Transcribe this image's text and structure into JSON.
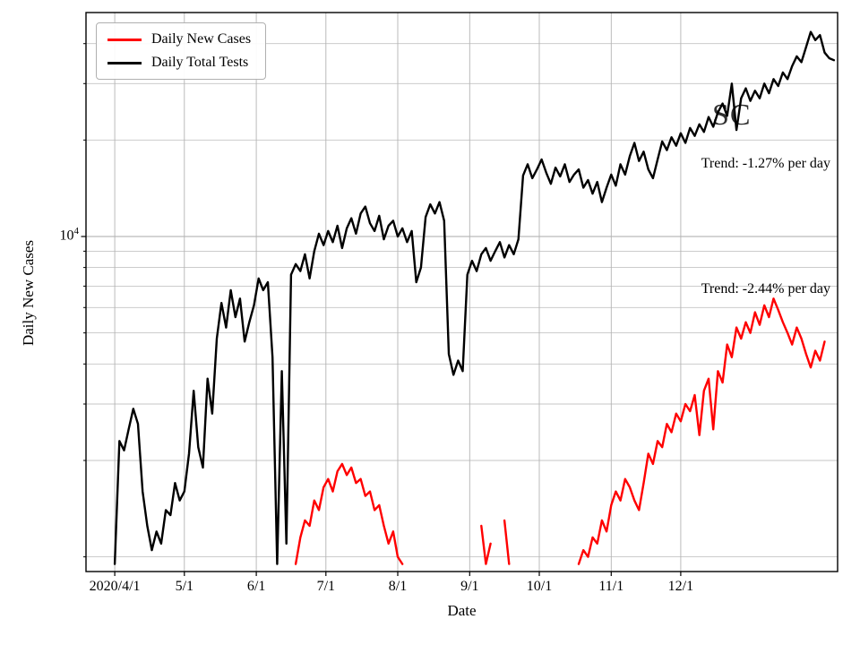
{
  "window": {
    "background": "#ffffff"
  },
  "watermark": {
    "text": "SC"
  },
  "axes": {
    "xlabel": "Date",
    "ylabel": "Daily New Cases",
    "y_tick": {
      "base": "10",
      "exponent": "4"
    }
  },
  "legend": {
    "items": [
      {
        "label": "Daily New Cases",
        "color": "#ff0000"
      },
      {
        "label": "Daily Total Tests",
        "color": "#000000"
      }
    ]
  },
  "annotations": [
    {
      "text": "Trend: -1.27% per day"
    },
    {
      "text": "Trend: -2.44% per day"
    }
  ],
  "chart_data": {
    "type": "line",
    "title": "SC",
    "xlabel": "Date",
    "ylabel": "Daily New Cases",
    "yscale": "log",
    "ylim": [
      900,
      50000
    ],
    "xlim_days": [
      -12.4,
      311.6
    ],
    "x_unit": "days since 2020/4/1",
    "grid": true,
    "legend_position": "upper-left",
    "x_ticks": [
      {
        "day": 0,
        "label": "2020/4/1"
      },
      {
        "day": 30,
        "label": "5/1"
      },
      {
        "day": 61,
        "label": "6/1"
      },
      {
        "day": 91,
        "label": "7/1"
      },
      {
        "day": 122,
        "label": "8/1"
      },
      {
        "day": 153,
        "label": "9/1"
      },
      {
        "day": 183,
        "label": "10/1"
      },
      {
        "day": 214,
        "label": "11/1"
      },
      {
        "day": 244,
        "label": "12/1"
      }
    ],
    "y_major_gridlines": [
      10000
    ],
    "y_minor_gridlines": [
      1000,
      2000,
      3000,
      4000,
      5000,
      6000,
      7000,
      8000,
      9000,
      20000,
      30000,
      40000
    ],
    "sample_start_day": 0,
    "sample_step_days": 2,
    "trend_annotations": [
      "Trend: -1.27% per day",
      "Trend: -2.44% per day"
    ],
    "series": [
      {
        "name": "Daily Total Tests",
        "color": "#000000",
        "values": [
          950,
          2300,
          2150,
          2500,
          2900,
          2600,
          1600,
          1250,
          1050,
          1200,
          1100,
          1400,
          1350,
          1700,
          1500,
          1600,
          2100,
          3300,
          2200,
          1900,
          3600,
          2800,
          4800,
          6200,
          5200,
          6800,
          5600,
          6400,
          4700,
          5400,
          6100,
          7400,
          6800,
          7200,
          4200,
          950,
          3800,
          1100,
          7600,
          8200,
          7800,
          8800,
          7400,
          9000,
          10200,
          9400,
          10400,
          9600,
          10800,
          9200,
          10600,
          11400,
          10200,
          11800,
          12400,
          11000,
          10400,
          11600,
          9800,
          10800,
          11200,
          10000,
          10600,
          9600,
          10400,
          7200,
          8000,
          11500,
          12600,
          11800,
          12800,
          11200,
          4300,
          3700,
          4100,
          3800,
          7600,
          8400,
          7800,
          8800,
          9200,
          8400,
          9000,
          9600,
          8600,
          9400,
          8800,
          9800,
          15500,
          16800,
          15200,
          16200,
          17400,
          15800,
          14600,
          16400,
          15400,
          16800,
          14800,
          15600,
          16200,
          14200,
          15000,
          13600,
          14800,
          12800,
          14200,
          15600,
          14400,
          16800,
          15600,
          17800,
          19600,
          17200,
          18400,
          16200,
          15200,
          17400,
          19800,
          18600,
          20400,
          19200,
          21000,
          19600,
          21800,
          20600,
          22400,
          21200,
          23600,
          22000,
          24400,
          26000,
          23800,
          30000,
          21500,
          27000,
          29000,
          26500,
          28500,
          27000,
          30000,
          28000,
          31000,
          29500,
          32500,
          31000,
          34000,
          36500,
          35000,
          39000,
          43500,
          41000,
          42500,
          37500,
          36000,
          35500
        ]
      },
      {
        "name": "Daily New Cases",
        "color": "#ff0000",
        "values": [
          null,
          null,
          null,
          null,
          null,
          null,
          null,
          null,
          null,
          null,
          null,
          null,
          null,
          null,
          null,
          null,
          null,
          null,
          null,
          null,
          null,
          null,
          null,
          null,
          null,
          null,
          null,
          null,
          null,
          null,
          null,
          null,
          null,
          null,
          null,
          null,
          null,
          null,
          null,
          950,
          1150,
          1300,
          1250,
          1500,
          1400,
          1650,
          1750,
          1600,
          1850,
          1950,
          1800,
          1900,
          1700,
          1750,
          1550,
          1600,
          1400,
          1450,
          1250,
          1100,
          1200,
          1000,
          950,
          null,
          null,
          null,
          null,
          null,
          null,
          null,
          null,
          null,
          null,
          null,
          null,
          null,
          null,
          null,
          null,
          1250,
          950,
          1100,
          null,
          null,
          1300,
          950,
          null,
          null,
          null,
          null,
          null,
          null,
          null,
          null,
          null,
          null,
          null,
          null,
          null,
          null,
          950,
          1050,
          1000,
          1150,
          1100,
          1300,
          1200,
          1450,
          1600,
          1500,
          1750,
          1650,
          1500,
          1400,
          1700,
          2100,
          1950,
          2300,
          2200,
          2600,
          2450,
          2800,
          2650,
          3000,
          2850,
          3200,
          2400,
          3300,
          3600,
          2500,
          3800,
          3500,
          4600,
          4200,
          5200,
          4800,
          5400,
          5000,
          5800,
          5300,
          6100,
          5600,
          6400,
          5900,
          5400,
          5000,
          4600,
          5200,
          4800,
          4300,
          3900,
          4400,
          4100,
          4700
        ]
      }
    ]
  }
}
